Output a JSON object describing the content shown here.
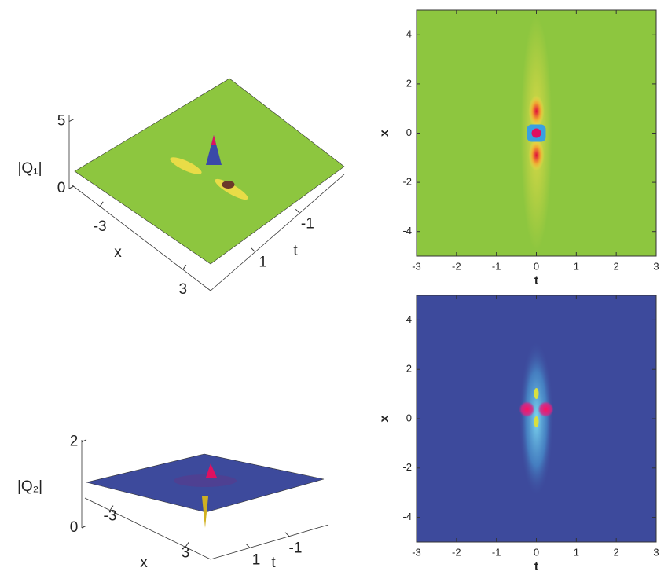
{
  "chart_data": [
    {
      "type": "surface3d",
      "zlabel": "|Q₁|",
      "xlabel": "x",
      "tlabel": "t",
      "color": "#8dc63f",
      "zticks": [
        0,
        5
      ],
      "xticks": [
        -3,
        3
      ],
      "tticks": [
        -1,
        1
      ]
    },
    {
      "type": "density",
      "xlabel": "t",
      "ylabel": "x",
      "color": "#8dc63f",
      "xlim": [
        -3,
        3
      ],
      "ylim": [
        -5,
        5
      ],
      "xticks": [
        -3,
        -2,
        -1,
        0,
        1,
        2,
        3
      ],
      "yticks": [
        -4,
        -2,
        0,
        2,
        4
      ]
    },
    {
      "type": "surface3d",
      "zlabel": "|Q₂|",
      "xlabel": "x",
      "tlabel": "t",
      "color": "#3d4a9c",
      "zticks": [
        0,
        2
      ],
      "xticks": [
        -3,
        3
      ],
      "tticks": [
        -1,
        1
      ]
    },
    {
      "type": "density",
      "xlabel": "t",
      "ylabel": "x",
      "color": "#3d4a9c",
      "xlim": [
        -3,
        3
      ],
      "ylim": [
        -5,
        5
      ],
      "xticks": [
        -3,
        -2,
        -1,
        0,
        1,
        2,
        3
      ],
      "yticks": [
        -4,
        -2,
        0,
        2,
        4
      ]
    }
  ]
}
